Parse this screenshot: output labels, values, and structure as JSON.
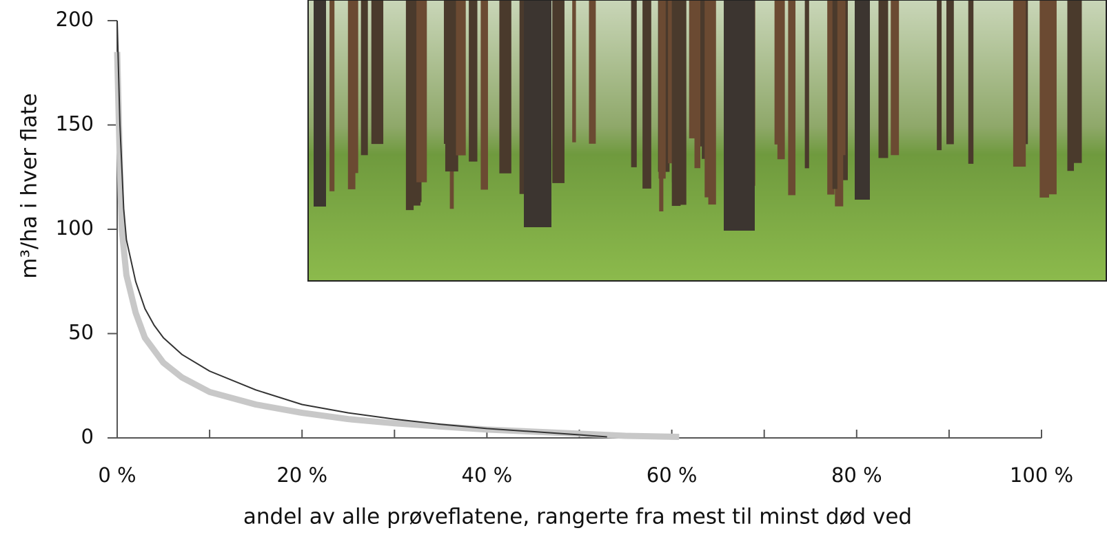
{
  "chart_data": {
    "type": "line",
    "y_label": "m³/ha i hver flate",
    "x_label": "andel av alle prøveflatene, rangerte fra mest til minst død ved",
    "xlim": [
      0,
      100
    ],
    "xticks": [
      {
        "value": 0,
        "label": "0 %"
      },
      {
        "value": 20,
        "label": "20 %"
      },
      {
        "value": 40,
        "label": "40 %"
      },
      {
        "value": 60,
        "label": "60 %"
      },
      {
        "value": 80,
        "label": "80 %"
      },
      {
        "value": 100,
        "label": "100 %"
      }
    ],
    "x_minor_ticks": [
      10,
      30,
      50,
      70,
      90
    ],
    "ylim": [
      0,
      200
    ],
    "yticks": [
      0,
      50,
      100,
      150,
      200
    ],
    "grid": false,
    "series": [
      {
        "color": "#c8c8c8",
        "x": [
          0,
          0.3,
          0.5,
          1,
          2,
          3,
          5,
          7,
          10,
          15,
          20,
          25,
          30,
          40,
          50,
          55,
          60.8
        ],
        "values": [
          185,
          130,
          100,
          78,
          60,
          48,
          36,
          29,
          22,
          16,
          12,
          9,
          7,
          4,
          2,
          1,
          0.5
        ]
      },
      {
        "color": "#333333",
        "x": [
          0,
          0.3,
          0.7,
          1,
          2,
          3,
          4,
          5,
          7,
          10,
          15,
          20,
          25,
          30,
          35,
          40,
          45,
          50,
          53
        ],
        "values": [
          200,
          150,
          110,
          95,
          75,
          62,
          54,
          48,
          40,
          32,
          23,
          16,
          12,
          9,
          6.5,
          4.5,
          3,
          1.5,
          0.5
        ]
      }
    ]
  }
}
